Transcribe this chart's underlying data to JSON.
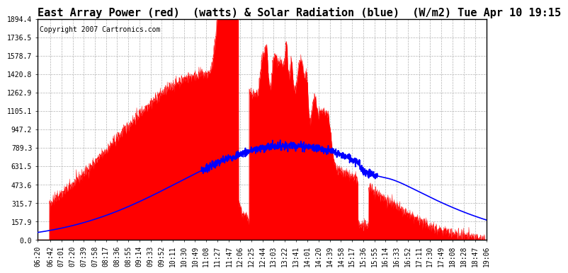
{
  "title": "East Array Power (red)  (watts) & Solar Radiation (blue)  (W/m2) Tue Apr 10 19:15",
  "copyright": "Copyright 2007 Cartronics.com",
  "bg_color": "#ffffff",
  "plot_bg_color": "#ffffff",
  "grid_color": "#aaaaaa",
  "red_color": "#ff0000",
  "blue_color": "#0000ff",
  "ymin": 0.0,
  "ymax": 1894.4,
  "yticks": [
    0.0,
    157.9,
    315.7,
    473.6,
    631.5,
    789.3,
    947.2,
    1105.1,
    1262.9,
    1420.8,
    1578.7,
    1736.5,
    1894.4
  ],
  "xtick_labels": [
    "06:20",
    "06:42",
    "07:01",
    "07:20",
    "07:39",
    "07:58",
    "08:17",
    "08:36",
    "08:55",
    "09:14",
    "09:33",
    "09:52",
    "10:11",
    "10:30",
    "10:49",
    "11:08",
    "11:27",
    "11:47",
    "12:06",
    "12:25",
    "12:44",
    "13:03",
    "13:22",
    "13:41",
    "14:01",
    "14:20",
    "14:39",
    "14:58",
    "15:17",
    "15:36",
    "15:55",
    "16:14",
    "16:33",
    "16:52",
    "17:11",
    "17:30",
    "17:49",
    "18:08",
    "18:28",
    "18:47",
    "19:06"
  ],
  "title_fontsize": 11,
  "tick_fontsize": 7,
  "copyright_fontsize": 7
}
